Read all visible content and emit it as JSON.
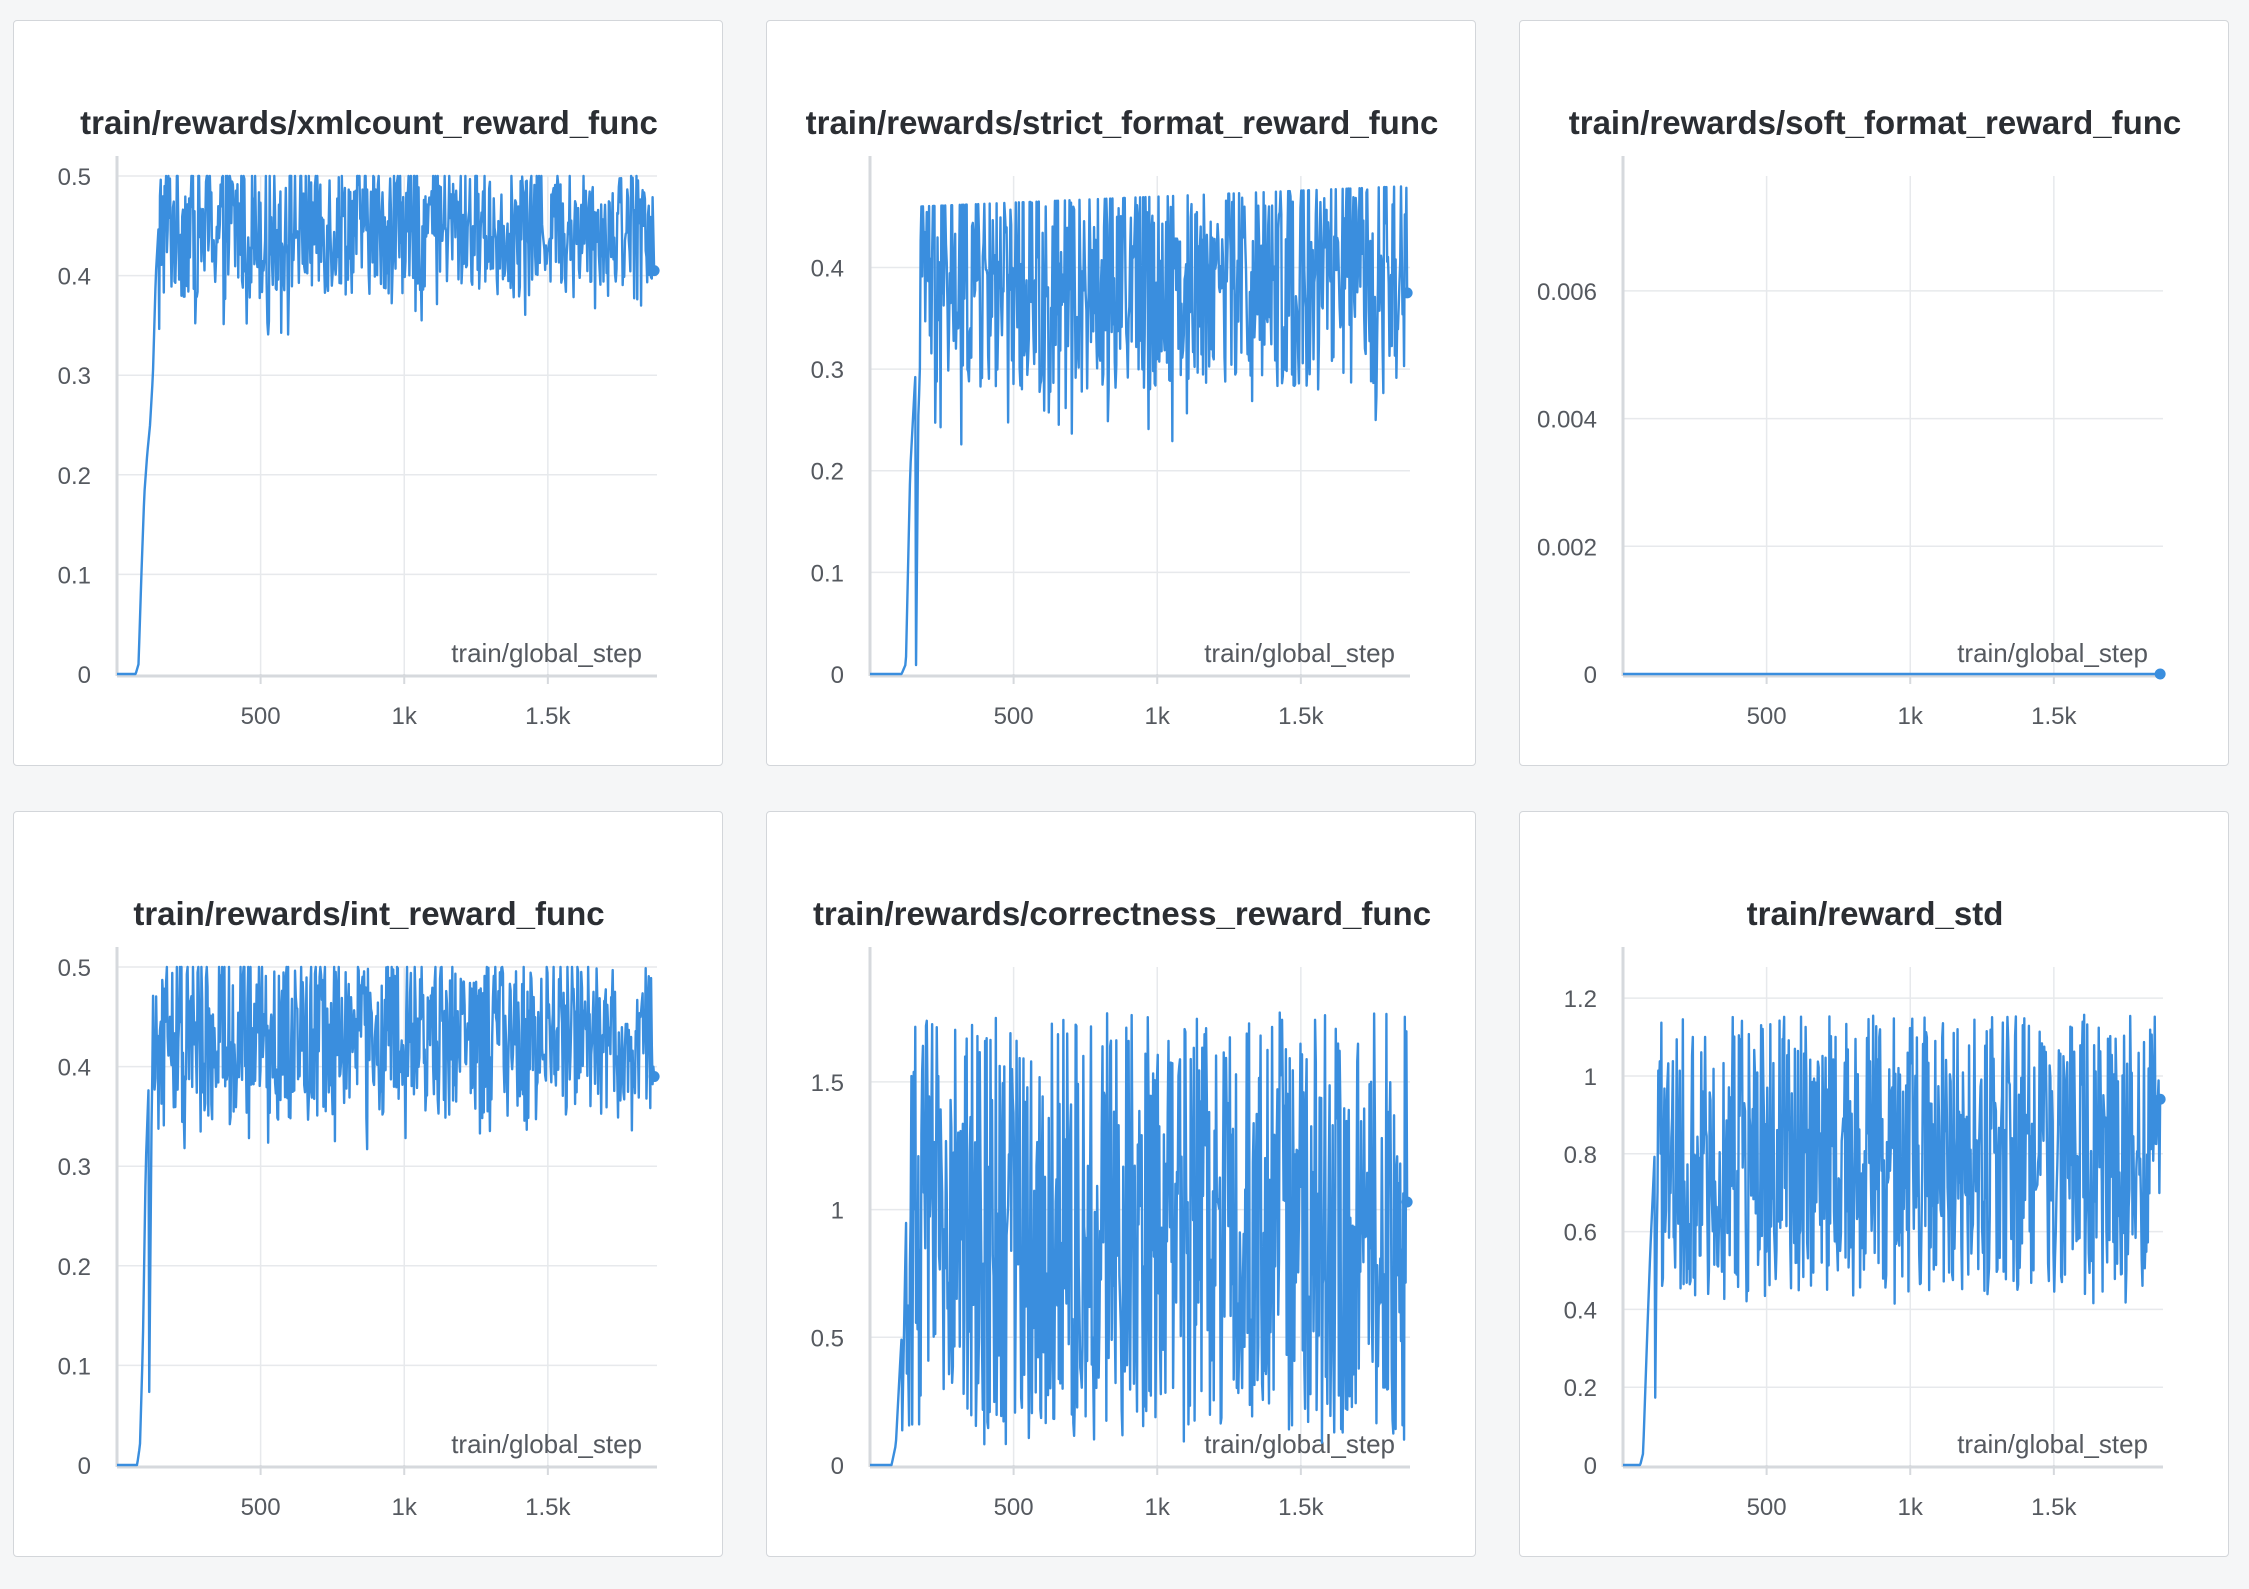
{
  "colors": {
    "series": "#3a8ede",
    "grid": "#e7e9ec",
    "axis": "#d6d9dd",
    "panel_border": "#d3d6da",
    "background": "#f5f6f7"
  },
  "chart_data": [
    {
      "type": "line",
      "title": "train/rewards/xmlcount_reward_func",
      "xlabel": "train/global_step",
      "xlim": [
        0,
        1880
      ],
      "ylim": [
        0,
        0.5
      ],
      "yticks": [
        0,
        0.1,
        0.2,
        0.3,
        0.4,
        0.5
      ],
      "ytick_labels": [
        "0",
        "0.1",
        "0.2",
        "0.3",
        "0.4",
        "0.5"
      ],
      "xticks": [
        500,
        1000,
        1500
      ],
      "xtick_labels": [
        "500",
        "1k",
        "1.5k"
      ],
      "grid": true,
      "legend": "none",
      "series": [
        {
          "x_start": 0,
          "x_end": 1870,
          "points": [
            [
              0,
              0
            ],
            [
              65,
              0
            ],
            [
              75,
              0.01
            ],
            [
              85,
              0.1
            ],
            [
              95,
              0.18
            ],
            [
              105,
              0.22
            ],
            [
              115,
              0.25
            ],
            [
              125,
              0.3
            ],
            [
              135,
              0.4
            ],
            [
              145,
              0.45
            ],
            [
              1870,
              0.45
            ]
          ],
          "noise_min": [
            [
              0,
              0
            ],
            [
              130,
              0
            ],
            [
              140,
              0.33
            ],
            [
              1870,
              0.37
            ]
          ],
          "noise_max": [
            [
              0,
              0
            ],
            [
              140,
              0
            ],
            [
              150,
              0.5
            ],
            [
              1870,
              0.5
            ]
          ],
          "last": 0.405
        }
      ]
    },
    {
      "type": "line",
      "title": "train/rewards/strict_format_reward_func",
      "xlabel": "train/global_step",
      "xlim": [
        0,
        1880
      ],
      "ylim": [
        0,
        0.49
      ],
      "yticks": [
        0,
        0.1,
        0.2,
        0.3,
        0.4
      ],
      "ytick_labels": [
        "0",
        "0.1",
        "0.2",
        "0.3",
        "0.4"
      ],
      "xticks": [
        500,
        1000,
        1500
      ],
      "xtick_labels": [
        "500",
        "1k",
        "1.5k"
      ],
      "grid": true,
      "legend": "none",
      "series": [
        {
          "x_start": 0,
          "x_end": 1870,
          "points": [
            [
              0,
              0
            ],
            [
              100,
              0
            ],
            [
              110,
              0
            ],
            [
              125,
              0.01
            ],
            [
              140,
              0.2
            ],
            [
              155,
              0.28
            ],
            [
              170,
              0.35
            ],
            [
              185,
              0.39
            ],
            [
              1870,
              0.39
            ]
          ],
          "noise_min": [
            [
              0,
              0
            ],
            [
              160,
              0
            ],
            [
              175,
              0.2
            ],
            [
              1870,
              0.25
            ]
          ],
          "noise_max": [
            [
              0,
              0
            ],
            [
              160,
              0
            ],
            [
              175,
              0.46
            ],
            [
              1870,
              0.48
            ]
          ],
          "last": 0.375
        }
      ]
    },
    {
      "type": "line",
      "title": "train/rewards/soft_format_reward_func",
      "xlabel": "train/global_step",
      "xlim": [
        0,
        1880
      ],
      "ylim": [
        0,
        0.0078
      ],
      "yticks": [
        0,
        0.002,
        0.004,
        0.006
      ],
      "ytick_labels": [
        "0",
        "0.002",
        "0.004",
        "0.006"
      ],
      "xticks": [
        500,
        1000,
        1500
      ],
      "xtick_labels": [
        "500",
        "1k",
        "1.5k"
      ],
      "grid": true,
      "legend": "none",
      "series": [
        {
          "x_start": 0,
          "x_end": 1870,
          "points": [
            [
              0,
              0
            ],
            [
              1870,
              0
            ]
          ],
          "noise_min": [
            [
              0,
              0
            ],
            [
              1870,
              0
            ]
          ],
          "noise_max": [
            [
              0,
              0
            ],
            [
              1870,
              0
            ]
          ],
          "last": 0
        }
      ]
    },
    {
      "type": "line",
      "title": "train/rewards/int_reward_func",
      "xlabel": "train/global_step",
      "xlim": [
        0,
        1880
      ],
      "ylim": [
        0,
        0.5
      ],
      "yticks": [
        0,
        0.1,
        0.2,
        0.3,
        0.4,
        0.5
      ],
      "ytick_labels": [
        "0",
        "0.1",
        "0.2",
        "0.3",
        "0.4",
        "0.5"
      ],
      "xticks": [
        500,
        1000,
        1500
      ],
      "xtick_labels": [
        "500",
        "1k",
        "1.5k"
      ],
      "grid": true,
      "legend": "none",
      "series": [
        {
          "x_start": 0,
          "x_end": 1870,
          "points": [
            [
              0,
              0
            ],
            [
              70,
              0
            ],
            [
              80,
              0.02
            ],
            [
              90,
              0.12
            ],
            [
              100,
              0.3
            ],
            [
              110,
              0.38
            ],
            [
              125,
              0.43
            ],
            [
              1870,
              0.43
            ]
          ],
          "noise_min": [
            [
              0,
              0
            ],
            [
              110,
              0
            ],
            [
              125,
              0.3
            ],
            [
              1870,
              0.33
            ]
          ],
          "noise_max": [
            [
              0,
              0
            ],
            [
              110,
              0
            ],
            [
              125,
              0.5
            ],
            [
              1870,
              0.5
            ]
          ],
          "last": 0.39
        }
      ]
    },
    {
      "type": "line",
      "title": "train/rewards/correctness_reward_func",
      "xlabel": "train/global_step",
      "xlim": [
        0,
        1880
      ],
      "ylim": [
        0,
        1.95
      ],
      "yticks": [
        0,
        0.5,
        1,
        1.5
      ],
      "ytick_labels": [
        "0",
        "0.5",
        "1",
        "1.5"
      ],
      "xticks": [
        500,
        1000,
        1500
      ],
      "xtick_labels": [
        "500",
        "1k",
        "1.5k"
      ],
      "grid": true,
      "legend": "none",
      "series": [
        {
          "x_start": 0,
          "x_end": 1870,
          "points": [
            [
              0,
              0
            ],
            [
              75,
              0
            ],
            [
              90,
              0.08
            ],
            [
              105,
              0.4
            ],
            [
              120,
              0.7
            ],
            [
              150,
              0.95
            ],
            [
              1870,
              0.95
            ]
          ],
          "noise_min": [
            [
              0,
              0
            ],
            [
              110,
              0
            ],
            [
              140,
              0.05
            ],
            [
              1870,
              0.05
            ]
          ],
          "noise_max": [
            [
              0,
              0
            ],
            [
              110,
              0
            ],
            [
              140,
              1.85
            ],
            [
              1870,
              1.9
            ]
          ],
          "last": 1.03
        }
      ]
    },
    {
      "type": "line",
      "title": "train/reward_std",
      "xlabel": "train/global_step",
      "xlim": [
        0,
        1880
      ],
      "ylim": [
        0,
        1.28
      ],
      "yticks": [
        0,
        0.2,
        0.4,
        0.6,
        0.8,
        1,
        1.2
      ],
      "ytick_labels": [
        "0",
        "0.2",
        "0.4",
        "0.6",
        "0.8",
        "1",
        "1.2"
      ],
      "xticks": [
        500,
        1000,
        1500
      ],
      "xtick_labels": [
        "500",
        "1k",
        "1.5k"
      ],
      "grid": true,
      "legend": "none",
      "series": [
        {
          "x_start": 0,
          "x_end": 1870,
          "points": [
            [
              0,
              0
            ],
            [
              60,
              0
            ],
            [
              70,
              0.03
            ],
            [
              85,
              0.35
            ],
            [
              95,
              0.55
            ],
            [
              110,
              0.8
            ],
            [
              1870,
              0.8
            ]
          ],
          "noise_min": [
            [
              0,
              0
            ],
            [
              110,
              0
            ],
            [
              125,
              0.4
            ],
            [
              1870,
              0.4
            ]
          ],
          "noise_max": [
            [
              0,
              0
            ],
            [
              110,
              0
            ],
            [
              125,
              1.18
            ],
            [
              1870,
              1.2
            ]
          ],
          "last": 0.94
        }
      ]
    }
  ]
}
